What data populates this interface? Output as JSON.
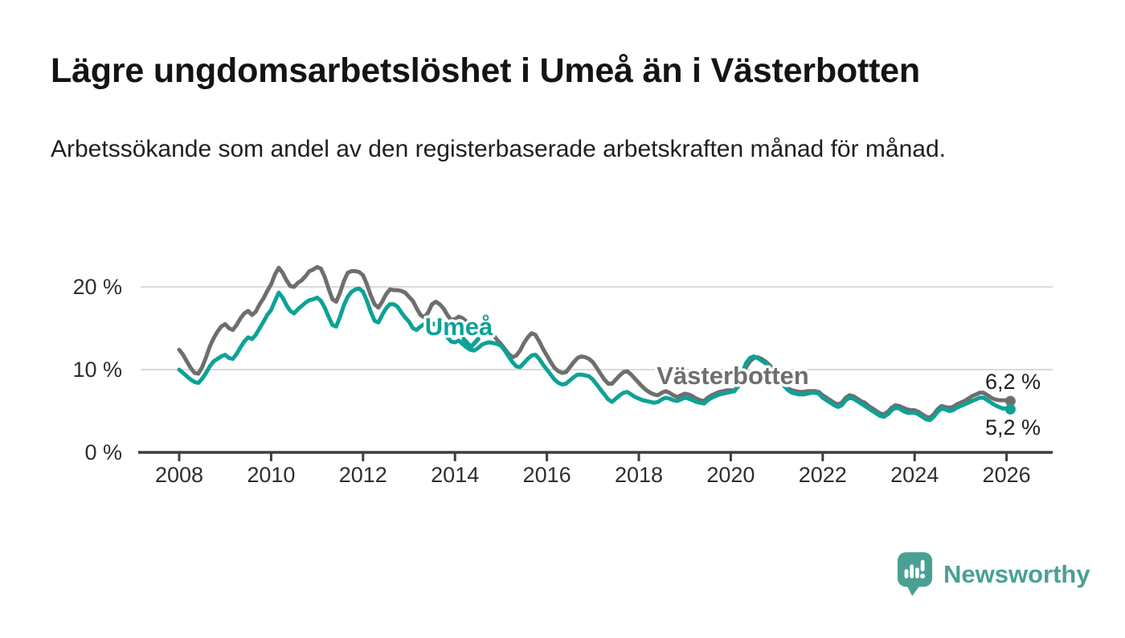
{
  "header": {
    "title": "Lägre ungdomsarbetslöshet i Umeå än i Västerbotten",
    "subtitle": "Arbetssökande som andel av den registerbaserade arbetskraften månad för månad."
  },
  "colors": {
    "umea": "#0da296",
    "vasterbotten": "#6e6e6e",
    "axis": "#3e3e3e",
    "grid": "#dadada",
    "tick_text": "#2e2e2e",
    "end_label_text": "#1d1d1d",
    "title_text": "#141414",
    "brand": "#4aa094"
  },
  "footer": {
    "brand": "Newsworthy"
  },
  "chart_data": {
    "type": "line",
    "title": "Lägre ungdomsarbetslöshet i Umeå än i Västerbotten",
    "xlabel": "",
    "ylabel": "",
    "unit": "%",
    "grid": "horizontal-only",
    "legend_position": "inline-labels-on-lines",
    "x_start": "2008-01",
    "x_end": "2026-02",
    "x_interval": "monthly",
    "ylim": [
      0,
      24
    ],
    "xlim_years": [
      2007.1,
      2027.0
    ],
    "y_ticks": [
      {
        "value": 0,
        "label": "0 %"
      },
      {
        "value": 10,
        "label": "10 %"
      },
      {
        "value": 20,
        "label": "20 %"
      }
    ],
    "x_ticks": [
      {
        "year": 2008,
        "label": "2008"
      },
      {
        "year": 2010,
        "label": "2010"
      },
      {
        "year": 2012,
        "label": "2012"
      },
      {
        "year": 2014,
        "label": "2014"
      },
      {
        "year": 2016,
        "label": "2016"
      },
      {
        "year": 2018,
        "label": "2018"
      },
      {
        "year": 2020,
        "label": "2020"
      },
      {
        "year": 2022,
        "label": "2022"
      },
      {
        "year": 2024,
        "label": "2024"
      },
      {
        "year": 2026,
        "label": "2026"
      }
    ],
    "series": [
      {
        "id": "vasterbotten",
        "name": "Västerbotten",
        "color_key": "vasterbotten",
        "end_value_label": "6,2 %",
        "values": [
          12.4,
          11.8,
          11.0,
          10.2,
          9.6,
          9.5,
          10.3,
          11.5,
          12.8,
          13.8,
          14.6,
          15.2,
          15.5,
          15.0,
          14.8,
          15.4,
          16.2,
          16.8,
          17.1,
          16.6,
          17.0,
          17.9,
          18.6,
          19.5,
          20.3,
          21.5,
          22.3,
          21.7,
          20.8,
          20.1,
          20.0,
          20.5,
          20.8,
          21.3,
          21.9,
          22.1,
          22.4,
          22.2,
          21.2,
          19.8,
          18.5,
          18.2,
          19.3,
          20.7,
          21.7,
          21.9,
          21.9,
          21.8,
          21.4,
          20.3,
          19.0,
          17.9,
          17.5,
          18.2,
          19.1,
          19.7,
          19.6,
          19.6,
          19.5,
          19.3,
          18.8,
          18.3,
          17.4,
          16.6,
          16.3,
          16.9,
          17.9,
          18.2,
          17.9,
          17.4,
          16.6,
          16.0,
          16.1,
          16.4,
          16.2,
          15.8,
          15.3,
          15.0,
          15.4,
          15.7,
          15.5,
          14.9,
          14.2,
          13.6,
          13.1,
          12.5,
          11.9,
          11.5,
          11.7,
          12.3,
          13.2,
          13.9,
          14.4,
          14.2,
          13.4,
          12.5,
          11.7,
          10.9,
          10.2,
          9.8,
          9.6,
          9.7,
          10.3,
          10.9,
          11.4,
          11.6,
          11.5,
          11.3,
          10.9,
          10.2,
          9.5,
          8.8,
          8.3,
          8.3,
          8.8,
          9.3,
          9.7,
          9.8,
          9.4,
          8.9,
          8.4,
          7.9,
          7.5,
          7.2,
          7.0,
          6.9,
          7.2,
          7.4,
          7.2,
          6.9,
          6.7,
          6.9,
          7.1,
          7.0,
          6.8,
          6.5,
          6.3,
          6.2,
          6.6,
          6.9,
          7.1,
          7.3,
          7.4,
          7.5,
          7.5,
          7.5,
          8.0,
          9.2,
          10.3,
          11.0,
          11.4,
          11.5,
          11.3,
          11.0,
          10.6,
          10.1,
          9.4,
          8.8,
          8.2,
          7.7,
          7.5,
          7.4,
          7.3,
          7.3,
          7.4,
          7.4,
          7.4,
          7.3,
          6.9,
          6.6,
          6.3,
          6.0,
          5.8,
          6.0,
          6.6,
          6.9,
          6.8,
          6.5,
          6.2,
          6.0,
          5.6,
          5.3,
          5.0,
          4.7,
          4.6,
          4.9,
          5.4,
          5.7,
          5.6,
          5.4,
          5.2,
          5.1,
          5.1,
          4.9,
          4.6,
          4.3,
          4.2,
          4.6,
          5.2,
          5.6,
          5.5,
          5.4,
          5.5,
          5.8,
          6.0,
          6.2,
          6.5,
          6.8,
          7.0,
          7.2,
          7.2,
          6.9,
          6.6,
          6.4,
          6.3,
          6.3,
          6.3,
          6.2
        ]
      },
      {
        "id": "umea",
        "name": "Umeå",
        "color_key": "umea",
        "end_value_label": "5,2 %",
        "values": [
          10.0,
          9.6,
          9.2,
          8.8,
          8.5,
          8.4,
          8.9,
          9.6,
          10.4,
          11.0,
          11.3,
          11.6,
          11.8,
          11.4,
          11.3,
          11.9,
          12.7,
          13.4,
          13.9,
          13.7,
          14.2,
          15.0,
          15.8,
          16.6,
          17.2,
          18.3,
          19.3,
          18.7,
          17.8,
          17.1,
          16.8,
          17.3,
          17.7,
          18.1,
          18.4,
          18.5,
          18.7,
          18.3,
          17.5,
          16.4,
          15.4,
          15.2,
          16.4,
          17.8,
          18.8,
          19.4,
          19.7,
          19.8,
          19.4,
          18.3,
          17.0,
          15.9,
          15.7,
          16.6,
          17.4,
          17.9,
          17.9,
          17.6,
          16.9,
          16.3,
          15.8,
          15.0,
          14.8,
          15.2,
          15.5,
          15.3,
          15.6,
          15.4,
          15.0,
          14.5,
          13.9,
          13.4,
          13.3,
          13.5,
          13.1,
          12.7,
          12.4,
          12.3,
          12.6,
          13.0,
          13.2,
          13.3,
          13.2,
          13.1,
          12.9,
          12.3,
          11.6,
          10.9,
          10.4,
          10.3,
          10.8,
          11.3,
          11.7,
          11.8,
          11.3,
          10.6,
          10.0,
          9.4,
          8.8,
          8.4,
          8.2,
          8.3,
          8.7,
          9.1,
          9.4,
          9.4,
          9.3,
          9.2,
          8.8,
          8.2,
          7.6,
          7.0,
          6.4,
          6.1,
          6.5,
          6.9,
          7.2,
          7.3,
          7.0,
          6.7,
          6.5,
          6.3,
          6.2,
          6.1,
          6.0,
          6.1,
          6.4,
          6.6,
          6.5,
          6.3,
          6.2,
          6.4,
          6.6,
          6.5,
          6.3,
          6.1,
          6.0,
          5.9,
          6.3,
          6.6,
          6.8,
          7.0,
          7.1,
          7.2,
          7.3,
          7.4,
          8.2,
          9.6,
          10.8,
          11.4,
          11.6,
          11.4,
          11.1,
          10.8,
          10.4,
          9.9,
          9.2,
          8.6,
          8.0,
          7.5,
          7.2,
          7.1,
          7.0,
          7.0,
          7.1,
          7.2,
          7.2,
          7.1,
          6.6,
          6.3,
          6.0,
          5.7,
          5.5,
          5.7,
          6.3,
          6.6,
          6.5,
          6.2,
          5.9,
          5.6,
          5.3,
          5.0,
          4.7,
          4.4,
          4.3,
          4.6,
          5.1,
          5.4,
          5.3,
          5.0,
          4.8,
          4.8,
          4.8,
          4.6,
          4.3,
          4.0,
          3.9,
          4.3,
          4.9,
          5.3,
          5.2,
          5.0,
          5.1,
          5.4,
          5.6,
          5.8,
          6.0,
          6.2,
          6.4,
          6.6,
          6.6,
          6.3,
          6.0,
          5.7,
          5.5,
          5.3,
          5.3,
          5.2
        ]
      }
    ],
    "series_labels": [
      {
        "series_id": "umea",
        "text": "Umeå",
        "x": 571,
        "y": 417,
        "arrow": "chevron-down",
        "arrow_points": "577,422 586,432 595,422"
      },
      {
        "series_id": "vasterbotten",
        "text": "Västerbotten",
        "x": 912,
        "y": 478
      }
    ],
    "end_labels": [
      {
        "series_id": "vasterbotten",
        "text": "6,2 %",
        "x": 1226,
        "y": 484
      },
      {
        "series_id": "umea",
        "text": "5,2 %",
        "x": 1226,
        "y": 541
      }
    ]
  }
}
